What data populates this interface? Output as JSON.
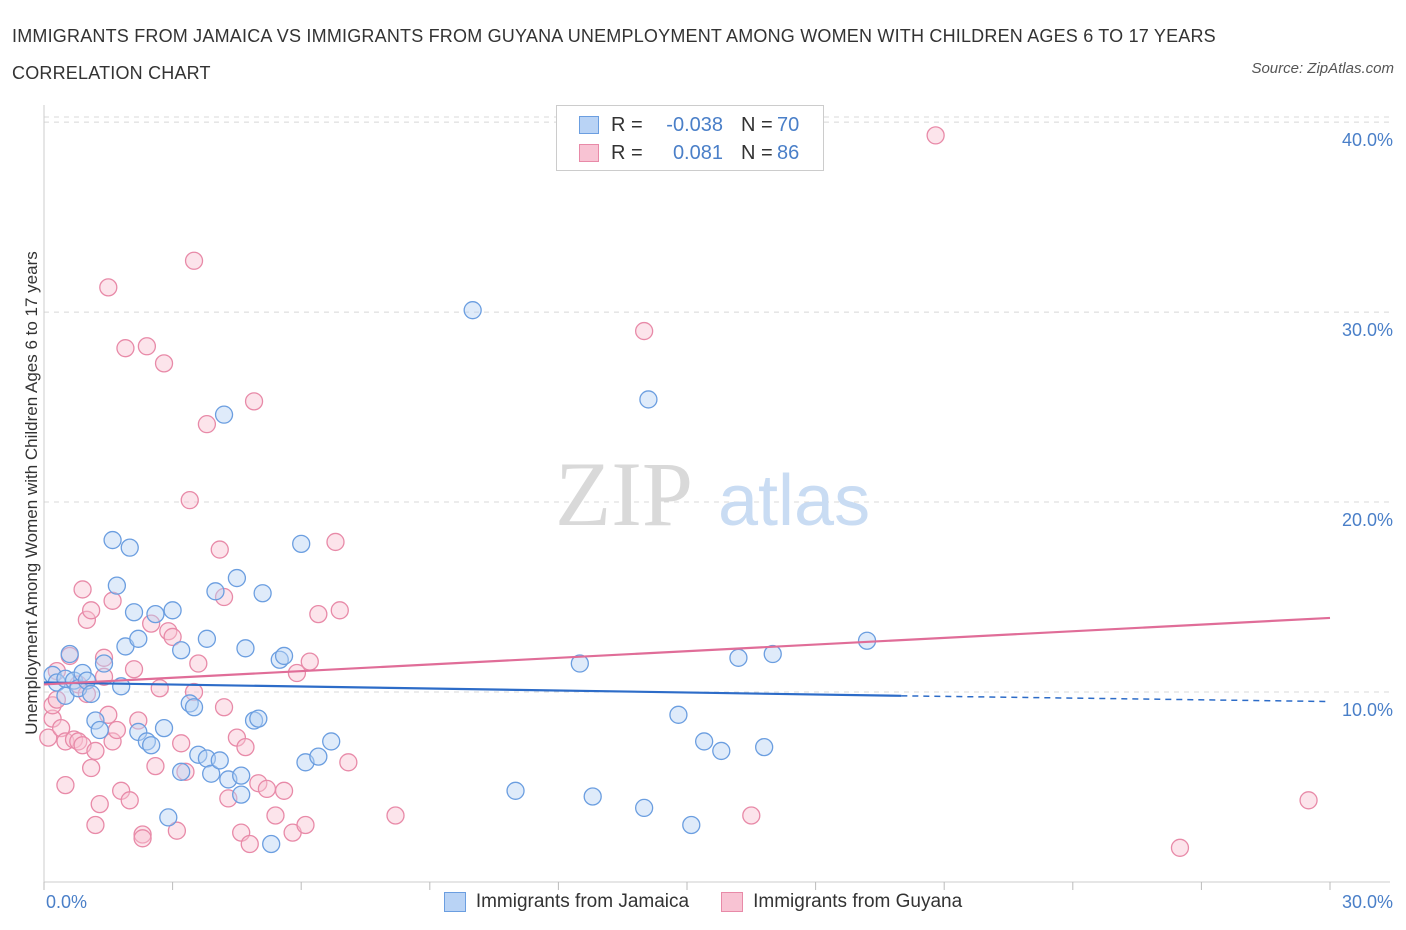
{
  "title": "IMMIGRANTS FROM JAMAICA VS IMMIGRANTS FROM GUYANA UNEMPLOYMENT AMONG WOMEN WITH CHILDREN AGES 6 TO 17 YEARS CORRELATION CHART",
  "source": "Source: ZipAtlas.com",
  "watermark": {
    "zip": "ZIP",
    "atlas": "atlas"
  },
  "legend": {
    "rows": [
      {
        "r_label": "R =",
        "r_value": "-0.038",
        "n_label": "N =",
        "n_value": "70"
      },
      {
        "r_label": "R =",
        "r_value": "0.081",
        "n_label": "N =",
        "n_value": "86"
      }
    ]
  },
  "colors": {
    "jamaica_fill": "#b9d3f5",
    "jamaica_stroke": "#6b9ee0",
    "jamaica_line": "#2d6cc8",
    "guyana_fill": "#f8c3d3",
    "guyana_stroke": "#e88aa8",
    "guyana_line": "#e06d98",
    "grid": "#d8d8d8",
    "tick_text": "#4a7fc8"
  },
  "chart_data": {
    "type": "scatter",
    "title": "IMMIGRANTS FROM JAMAICA VS IMMIGRANTS FROM GUYANA UNEMPLOYMENT AMONG WOMEN WITH CHILDREN AGES 6 TO 17 YEARS CORRELATION CHART",
    "xlabel": "",
    "ylabel": "Unemployment Among Women with Children Ages 6 to 17 years",
    "xlim": [
      0,
      30
    ],
    "ylim": [
      0,
      40.9
    ],
    "x_ticks": [
      0,
      30
    ],
    "x_tick_labels": [
      "0.0%",
      "30.0%"
    ],
    "y_ticks": [
      10,
      20,
      30,
      40
    ],
    "y_tick_labels": [
      "10.0%",
      "20.0%",
      "30.0%",
      "40.0%"
    ],
    "grid": true,
    "legend_position": "top-center",
    "series": [
      {
        "name": "Immigrants from Jamaica",
        "R": -0.038,
        "N": 70,
        "trend": {
          "x": [
            0,
            20
          ],
          "y": [
            10.5,
            9.8
          ],
          "dashed_to": [
            30,
            9.5
          ]
        },
        "points": [
          [
            0.2,
            10.9
          ],
          [
            0.3,
            10.5
          ],
          [
            0.5,
            9.8
          ],
          [
            0.5,
            10.7
          ],
          [
            0.6,
            12.0
          ],
          [
            0.7,
            10.6
          ],
          [
            0.8,
            10.2
          ],
          [
            0.9,
            11.0
          ],
          [
            1.0,
            10.6
          ],
          [
            1.1,
            9.9
          ],
          [
            1.2,
            8.5
          ],
          [
            1.3,
            8.0
          ],
          [
            1.4,
            11.5
          ],
          [
            1.6,
            18.0
          ],
          [
            1.7,
            15.6
          ],
          [
            1.8,
            10.3
          ],
          [
            1.9,
            12.4
          ],
          [
            2.0,
            17.6
          ],
          [
            2.1,
            14.2
          ],
          [
            2.2,
            12.8
          ],
          [
            2.2,
            7.9
          ],
          [
            2.4,
            7.4
          ],
          [
            2.5,
            7.2
          ],
          [
            2.6,
            14.1
          ],
          [
            2.8,
            8.1
          ],
          [
            2.9,
            3.4
          ],
          [
            3.0,
            14.3
          ],
          [
            3.2,
            5.8
          ],
          [
            3.2,
            12.2
          ],
          [
            3.4,
            9.4
          ],
          [
            3.5,
            9.2
          ],
          [
            3.6,
            6.7
          ],
          [
            3.8,
            12.8
          ],
          [
            3.8,
            6.5
          ],
          [
            3.9,
            5.7
          ],
          [
            4.0,
            15.3
          ],
          [
            4.1,
            6.4
          ],
          [
            4.2,
            24.6
          ],
          [
            4.3,
            5.4
          ],
          [
            4.5,
            16.0
          ],
          [
            4.6,
            5.6
          ],
          [
            4.6,
            4.6
          ],
          [
            4.7,
            12.3
          ],
          [
            4.9,
            8.5
          ],
          [
            5.0,
            8.6
          ],
          [
            5.1,
            15.2
          ],
          [
            5.3,
            2.0
          ],
          [
            5.5,
            11.7
          ],
          [
            5.6,
            11.9
          ],
          [
            6.0,
            17.8
          ],
          [
            6.1,
            6.3
          ],
          [
            6.4,
            6.6
          ],
          [
            6.7,
            7.4
          ],
          [
            10.0,
            30.1
          ],
          [
            11.0,
            4.8
          ],
          [
            12.5,
            11.5
          ],
          [
            12.8,
            4.5
          ],
          [
            14.0,
            3.9
          ],
          [
            14.1,
            25.4
          ],
          [
            14.8,
            8.8
          ],
          [
            15.1,
            3.0
          ],
          [
            15.4,
            7.4
          ],
          [
            15.8,
            6.9
          ],
          [
            16.2,
            11.8
          ],
          [
            16.8,
            7.1
          ],
          [
            17.0,
            12.0
          ],
          [
            19.2,
            12.7
          ]
        ]
      },
      {
        "name": "Immigrants from Guyana",
        "R": 0.081,
        "N": 86,
        "trend": {
          "x": [
            0,
            30
          ],
          "y": [
            10.4,
            13.9
          ]
        },
        "points": [
          [
            0.1,
            7.6
          ],
          [
            0.2,
            8.6
          ],
          [
            0.2,
            9.3
          ],
          [
            0.3,
            11.1
          ],
          [
            0.3,
            9.6
          ],
          [
            0.4,
            8.1
          ],
          [
            0.5,
            7.4
          ],
          [
            0.5,
            5.1
          ],
          [
            0.6,
            11.9
          ],
          [
            0.7,
            7.5
          ],
          [
            0.8,
            7.4
          ],
          [
            0.8,
            10.4
          ],
          [
            0.9,
            15.4
          ],
          [
            0.9,
            7.2
          ],
          [
            1.0,
            9.9
          ],
          [
            1.0,
            13.8
          ],
          [
            1.1,
            14.3
          ],
          [
            1.1,
            6.0
          ],
          [
            1.2,
            3.0
          ],
          [
            1.2,
            6.9
          ],
          [
            1.3,
            4.1
          ],
          [
            1.4,
            10.8
          ],
          [
            1.4,
            11.8
          ],
          [
            1.5,
            8.8
          ],
          [
            1.5,
            31.3
          ],
          [
            1.6,
            14.8
          ],
          [
            1.6,
            7.4
          ],
          [
            1.7,
            8.0
          ],
          [
            1.8,
            4.8
          ],
          [
            1.9,
            28.1
          ],
          [
            2.0,
            4.3
          ],
          [
            2.1,
            11.2
          ],
          [
            2.2,
            8.5
          ],
          [
            2.3,
            2.5
          ],
          [
            2.3,
            2.3
          ],
          [
            2.4,
            28.2
          ],
          [
            2.5,
            13.6
          ],
          [
            2.6,
            6.1
          ],
          [
            2.7,
            10.2
          ],
          [
            2.8,
            27.3
          ],
          [
            2.9,
            13.2
          ],
          [
            3.0,
            12.9
          ],
          [
            3.1,
            2.7
          ],
          [
            3.2,
            7.3
          ],
          [
            3.3,
            5.8
          ],
          [
            3.4,
            20.1
          ],
          [
            3.5,
            32.7
          ],
          [
            3.5,
            10.0
          ],
          [
            3.6,
            11.5
          ],
          [
            3.8,
            24.1
          ],
          [
            4.1,
            17.5
          ],
          [
            4.2,
            9.2
          ],
          [
            4.2,
            15.0
          ],
          [
            4.3,
            4.4
          ],
          [
            4.5,
            7.6
          ],
          [
            4.6,
            2.6
          ],
          [
            4.7,
            7.1
          ],
          [
            4.8,
            2.0
          ],
          [
            4.9,
            25.3
          ],
          [
            5.0,
            5.2
          ],
          [
            5.2,
            4.9
          ],
          [
            5.4,
            3.5
          ],
          [
            5.6,
            4.8
          ],
          [
            5.8,
            2.6
          ],
          [
            5.9,
            11.0
          ],
          [
            6.1,
            3.0
          ],
          [
            6.2,
            11.6
          ],
          [
            6.4,
            14.1
          ],
          [
            6.8,
            17.9
          ],
          [
            6.9,
            14.3
          ],
          [
            7.1,
            6.3
          ],
          [
            8.2,
            3.5
          ],
          [
            14.0,
            29.0
          ],
          [
            16.5,
            3.5
          ],
          [
            20.8,
            39.3
          ],
          [
            26.5,
            1.8
          ],
          [
            29.5,
            4.3
          ]
        ]
      }
    ]
  }
}
